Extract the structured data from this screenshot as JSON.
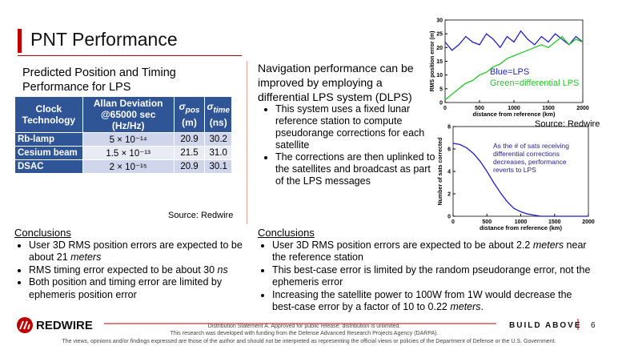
{
  "header": {
    "title": "PNT Performance"
  },
  "left": {
    "heading": "Predicted Position and Timing Performance for LPS",
    "table": {
      "columns": [
        "Clock Technology",
        "Allan Deviation @65000 sec (Hz/Hz)",
        {
          "symbol": "σ",
          "sub": "pos",
          "unit": "(m)"
        },
        {
          "symbol": "σ",
          "sub": "time",
          "unit": "(ns)"
        }
      ],
      "rows": [
        [
          "Rb-lamp",
          "5 × 10⁻¹⁴",
          "20.9",
          "30.2"
        ],
        [
          "Cesium beam",
          "1.5 × 10⁻¹³",
          "21.5",
          "31.0"
        ],
        [
          "DSAC",
          "2 × 10⁻¹⁵",
          "20.9",
          "30.1"
        ]
      ]
    },
    "source": "Source: Redwire",
    "conclusions": {
      "title": "Conclusions",
      "items": [
        [
          "User 3D RMS position errors are expected to be about 21 ",
          "meters"
        ],
        [
          "RMS timing error expected to be about 30 ",
          "ns"
        ],
        [
          "Both position and timing error are limited by ephemeris position error"
        ]
      ]
    }
  },
  "middle": {
    "heading": "Navigation performance can be improved by employing a differential LPS system (DLPS)",
    "bullets": [
      "This system uses a fixed lunar reference station to compute pseudorange corrections for each satellite",
      "The corrections are then uplinked to the satellites and broadcast as part of the LPS messages"
    ]
  },
  "charts": [
    {
      "type": "line",
      "xlabel": "distance from reference (km)",
      "ylabel": "RMS position error (m)",
      "x": [
        0,
        100,
        200,
        300,
        400,
        500,
        600,
        700,
        800,
        900,
        1000,
        1100,
        1200,
        1300,
        1400,
        1500,
        1600,
        1700,
        1800,
        1900,
        2000
      ],
      "series": [
        {
          "name": "Blue=LPS",
          "color": "#1f1fc8",
          "values": [
            22,
            19,
            21,
            24,
            22,
            21,
            25,
            23,
            20,
            24,
            22,
            26,
            23,
            21,
            24,
            22,
            25,
            23,
            21,
            24,
            22
          ]
        },
        {
          "name": "Green=differential LPS",
          "color": "#22c822",
          "values": [
            1,
            3,
            5,
            7,
            8,
            10,
            11,
            13,
            14,
            16,
            17,
            18,
            19,
            20,
            21,
            20,
            22,
            24,
            21,
            23,
            22
          ]
        }
      ],
      "xlim": [
        0,
        2000
      ],
      "ylim": [
        0,
        30
      ],
      "xticks": [
        0,
        500,
        1000,
        1500,
        2000
      ],
      "yticks": [
        0,
        5,
        10,
        15,
        20,
        25,
        30
      ],
      "source": "Source: Redwire"
    },
    {
      "type": "line",
      "xlabel": "distance from reference (km)",
      "ylabel": "Number of sats corrected",
      "x": [
        0,
        100,
        200,
        300,
        400,
        500,
        600,
        700,
        800,
        900,
        1000,
        1100,
        1200,
        1300,
        1400,
        1500,
        1600,
        1700,
        1800,
        1900,
        2000
      ],
      "series": [
        {
          "color": "#1f1fc8",
          "values": [
            6.5,
            6.4,
            6.1,
            5.6,
            4.9,
            4.0,
            3.0,
            2.1,
            1.3,
            0.7,
            0.4,
            0.2,
            0.1,
            0,
            0,
            0,
            0,
            0,
            0,
            0,
            0
          ]
        }
      ],
      "xlim": [
        0,
        2000
      ],
      "ylim": [
        0,
        8
      ],
      "xticks": [
        0,
        500,
        1000,
        1500,
        2000
      ],
      "yticks": [
        0,
        2,
        4,
        6,
        8
      ],
      "annotation": [
        "As the # of sats receiving",
        "differential corrections",
        "decreases, performance",
        "reverts to LPS"
      ]
    }
  ],
  "right_conclusions": {
    "title": "Conclusions",
    "items": [
      [
        "User 3D RMS position errors are expected to be about 2.2 ",
        "meters",
        " near the reference station"
      ],
      [
        "This best-case error is limited by the random pseudorange error, not the ephemeris error"
      ],
      [
        "Increasing the satellite power to 100W from 1W would decrease the best-case error by a factor of 10 to 0.22 ",
        "meters",
        "."
      ]
    ]
  },
  "footer": {
    "logo": "REDWIRE",
    "lines": [
      "Distribution Statement A. Approved for public release: distribution is unlimited.",
      "This research was developed with funding from the Defense Advanced Research Projects Agency (DARPA).",
      "The views, opinions and/or findings expressed are those of the author and should not be interpreted as representing the official views or policies of the Department of Defense or the U.S. Government."
    ],
    "tagline": "BUILD ABOVE",
    "page": "6"
  }
}
